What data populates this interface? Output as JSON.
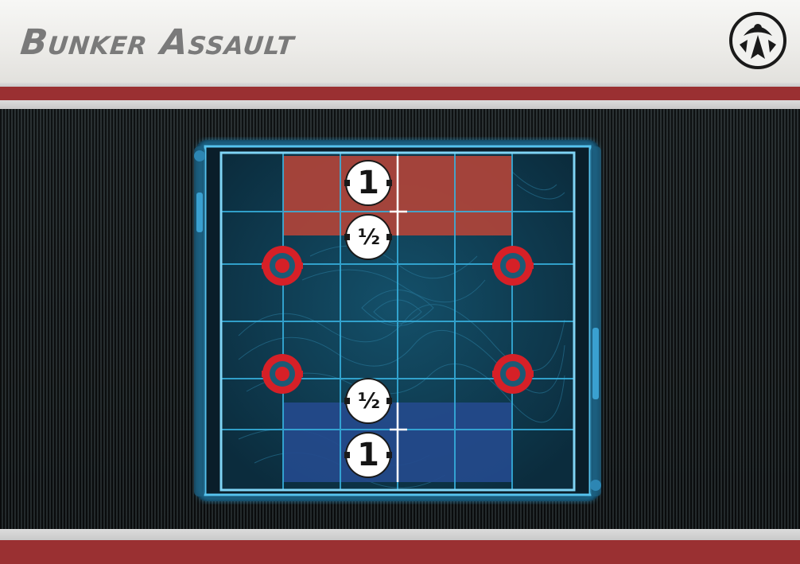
{
  "card": {
    "title": "Bunker Assault",
    "faction_icon": "rebel-alliance-crest-icon"
  },
  "map": {
    "grid": {
      "columns": 6,
      "rows": 6
    },
    "zones": {
      "red": {
        "color": "#b0443a",
        "near_label": "1",
        "far_label": "½"
      },
      "blue": {
        "color": "#244a8c",
        "near_label": "1",
        "far_label": "½"
      }
    },
    "objective_markers": {
      "count": 4,
      "color": "#d62027",
      "icon": "objective-target-icon"
    },
    "colors": {
      "map_frame": "#2fa6dc",
      "grid_line": "#2ca2ce",
      "terrain_base": "#0f3a50",
      "header_band": "#9a3032"
    }
  }
}
